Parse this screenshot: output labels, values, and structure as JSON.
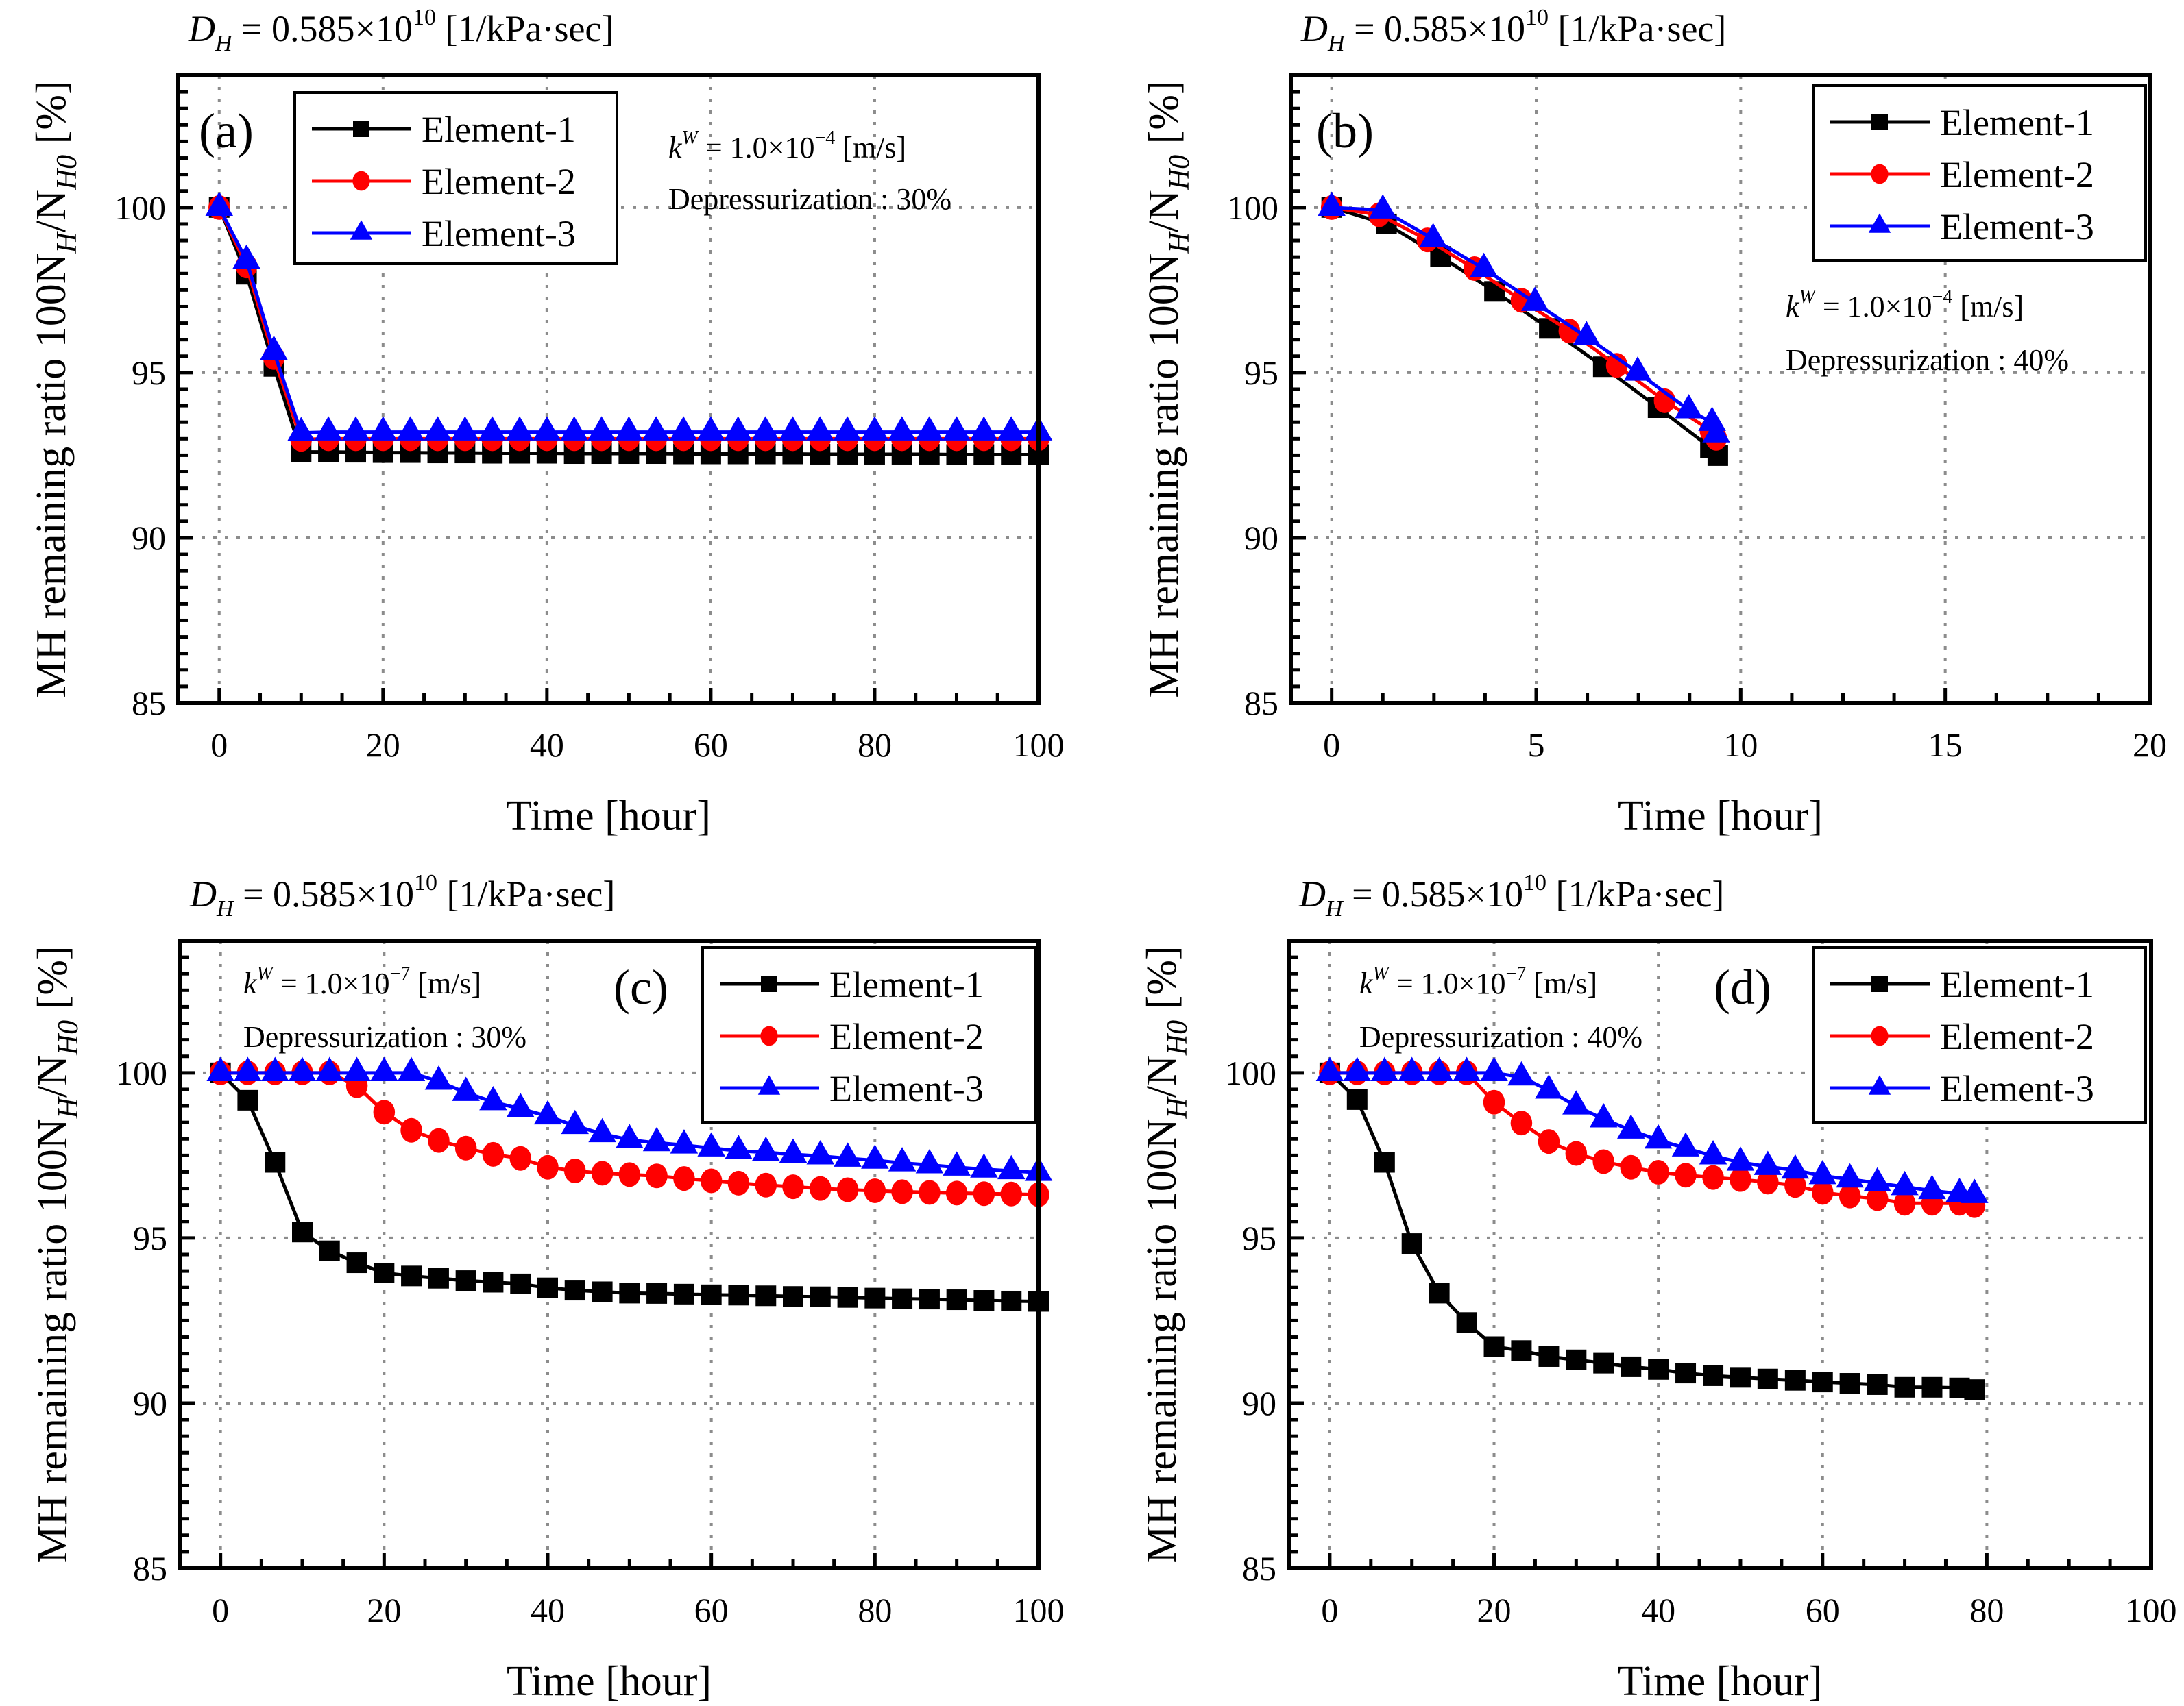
{
  "figure": {
    "y_axis_label": {
      "main": "MH remaining ratio 100N",
      "sub1": "H",
      "mid": "/N",
      "sub2": "H0",
      "unit": " [%]"
    },
    "x_axis_label": "Time [hour]",
    "header": {
      "lhs": "D",
      "lhs_sub": "H",
      "eq": " = 0.585×10",
      "exp": "10",
      "unit": " [1/kPa·sec]"
    },
    "colors": {
      "element_1": "#000000",
      "element_2": "#ff0000",
      "element_3": "#0000ff",
      "grid": "#8c8c8c"
    }
  },
  "chart_data": [
    {
      "type": "line",
      "panel_label": "(a)",
      "title": "D_H = 0.585×10^10 [1/kPa·sec]",
      "xlabel": "Time [hour]",
      "ylabel": "MH remaining ratio 100N_H/N_H0 [%]",
      "xlim": [
        -5,
        100
      ],
      "ylim": [
        85,
        104
      ],
      "xticks": [
        0,
        20,
        40,
        60,
        80,
        100
      ],
      "yticks": [
        85,
        90,
        95,
        100
      ],
      "grid": true,
      "legend_position": "top-left",
      "annotations": {
        "kw_base": "k",
        "kw_sup": "W",
        "kw_eq": " = 1.0×10",
        "kw_exp": "−4",
        "kw_unit": " [m/s]",
        "depress": "Depressurization : 30%"
      },
      "series": [
        {
          "name": "Element-1",
          "marker": "square",
          "x": [
            0,
            3.33,
            6.67,
            10,
            13.33,
            16.67,
            20,
            23.33,
            26.67,
            30,
            33.33,
            36.67,
            40,
            43.33,
            46.67,
            50,
            53.33,
            56.67,
            60,
            63.33,
            66.67,
            70,
            73.33,
            76.67,
            80,
            83.33,
            86.67,
            90,
            93.33,
            96.67,
            100
          ],
          "y": [
            100,
            97.98,
            95.19,
            92.6,
            92.6,
            92.59,
            92.58,
            92.58,
            92.57,
            92.57,
            92.56,
            92.56,
            92.56,
            92.55,
            92.55,
            92.55,
            92.55,
            92.54,
            92.54,
            92.54,
            92.54,
            92.54,
            92.53,
            92.53,
            92.53,
            92.53,
            92.53,
            92.52,
            92.52,
            92.52,
            92.52
          ]
        },
        {
          "name": "Element-2",
          "marker": "circle",
          "x": [
            0,
            3.33,
            6.67,
            10,
            13.33,
            16.67,
            20,
            23.33,
            26.67,
            30,
            33.33,
            36.67,
            40,
            43.33,
            46.67,
            50,
            53.33,
            56.67,
            60,
            63.33,
            66.67,
            70,
            73.33,
            76.67,
            80,
            83.33,
            86.67,
            90,
            93.33,
            96.67,
            100
          ],
          "y": [
            100,
            98.23,
            95.46,
            92.98,
            93.0,
            93.0,
            93.0,
            93.0,
            93.0,
            93.0,
            93.0,
            93.0,
            93.0,
            93.0,
            93.0,
            93.0,
            93.0,
            93.0,
            93.0,
            93.0,
            93.0,
            93.0,
            93.0,
            93.0,
            93.0,
            93.0,
            93.0,
            93.0,
            93.0,
            93.0,
            93.0
          ]
        },
        {
          "name": "Element-3",
          "marker": "triangle",
          "x": [
            0,
            3.33,
            6.67,
            10,
            13.33,
            16.67,
            20,
            23.33,
            26.67,
            30,
            33.33,
            36.67,
            40,
            43.33,
            46.67,
            50,
            53.33,
            56.67,
            60,
            63.33,
            66.67,
            70,
            73.33,
            76.67,
            80,
            83.33,
            86.67,
            90,
            93.33,
            96.67,
            100
          ],
          "y": [
            100,
            98.4,
            95.64,
            93.18,
            93.2,
            93.2,
            93.2,
            93.2,
            93.2,
            93.2,
            93.2,
            93.2,
            93.2,
            93.2,
            93.2,
            93.2,
            93.2,
            93.2,
            93.2,
            93.2,
            93.2,
            93.2,
            93.2,
            93.2,
            93.2,
            93.2,
            93.2,
            93.2,
            93.2,
            93.2,
            93.2
          ]
        }
      ]
    },
    {
      "type": "line",
      "panel_label": "(b)",
      "title": "D_H = 0.585×10^10 [1/kPa·sec]",
      "xlabel": "Time [hour]",
      "ylabel": "MH remaining ratio 100N_H/N_H0 [%]",
      "xlim": [
        -1,
        20
      ],
      "ylim": [
        85,
        104
      ],
      "xticks": [
        0,
        5,
        10,
        15,
        20
      ],
      "yticks": [
        85,
        90,
        95,
        100
      ],
      "grid": true,
      "legend_position": "top-right",
      "annotations": {
        "kw_base": "k",
        "kw_sup": "W",
        "kw_eq": " = 1.0×10",
        "kw_exp": "−4",
        "kw_unit": " [m/s]",
        "depress": "Depressurization : 40%"
      },
      "series": [
        {
          "name": "Element-1",
          "marker": "square",
          "x": [
            0,
            1.34,
            2.66,
            3.98,
            5.32,
            6.64,
            7.98,
            9.26,
            9.44
          ],
          "y": [
            100,
            99.5,
            98.52,
            97.46,
            96.34,
            95.18,
            93.94,
            92.73,
            92.49
          ]
        },
        {
          "name": "Element-2",
          "marker": "circle",
          "x": [
            0,
            1.16,
            2.34,
            3.49,
            4.64,
            5.81,
            6.97,
            8.14,
            9.26,
            9.4
          ],
          "y": [
            100,
            99.78,
            99.02,
            98.15,
            97.19,
            96.26,
            95.22,
            94.15,
            93.25,
            93.01
          ]
        },
        {
          "name": "Element-3",
          "marker": "triangle",
          "x": [
            0,
            1.25,
            2.48,
            3.72,
            4.97,
            6.23,
            7.48,
            8.73,
            9.3,
            9.4
          ],
          "y": [
            100,
            99.92,
            99.05,
            98.15,
            97.12,
            96.08,
            95.01,
            93.87,
            93.49,
            93.14
          ]
        }
      ]
    },
    {
      "type": "line",
      "panel_label": "(c)",
      "title": "D_H = 0.585×10^10 [1/kPa·sec]",
      "xlabel": "Time [hour]",
      "ylabel": "MH remaining ratio 100N_H/N_H0 [%]",
      "xlim": [
        -5,
        100
      ],
      "ylim": [
        85,
        104
      ],
      "xticks": [
        0,
        20,
        40,
        60,
        80,
        100
      ],
      "yticks": [
        85,
        90,
        95,
        100
      ],
      "grid": true,
      "legend_position": "top-right",
      "annotations": {
        "kw_base": "k",
        "kw_sup": "W",
        "kw_eq": " = 1.0×10",
        "kw_exp": "−7",
        "kw_unit": " [m/s]",
        "depress": "Depressurization : 30%"
      },
      "series": [
        {
          "name": "Element-1",
          "marker": "square",
          "x": [
            0,
            3.33,
            6.67,
            10,
            13.33,
            16.67,
            20,
            23.33,
            26.67,
            30,
            33.33,
            36.67,
            40,
            43.33,
            46.67,
            50,
            53.33,
            56.67,
            60,
            63.33,
            66.67,
            70,
            73.33,
            76.67,
            80,
            83.33,
            86.67,
            90,
            93.33,
            96.67,
            100
          ],
          "y": [
            100,
            99.17,
            97.29,
            95.18,
            94.61,
            94.25,
            93.94,
            93.85,
            93.78,
            93.71,
            93.66,
            93.61,
            93.49,
            93.42,
            93.37,
            93.33,
            93.32,
            93.3,
            93.28,
            93.27,
            93.25,
            93.23,
            93.22,
            93.2,
            93.18,
            93.16,
            93.15,
            93.13,
            93.11,
            93.09,
            93.08
          ]
        },
        {
          "name": "Element-2",
          "marker": "circle",
          "x": [
            0,
            3.33,
            6.67,
            10,
            13.33,
            16.67,
            20,
            23.33,
            26.67,
            30,
            33.33,
            36.67,
            40,
            43.33,
            46.67,
            50,
            53.33,
            56.67,
            60,
            63.33,
            66.67,
            70,
            73.33,
            76.67,
            80,
            83.33,
            86.67,
            90,
            93.33,
            96.67,
            100
          ],
          "y": [
            100,
            100,
            100,
            100,
            100,
            99.61,
            98.81,
            98.26,
            97.95,
            97.72,
            97.53,
            97.41,
            97.14,
            97.03,
            96.96,
            96.92,
            96.88,
            96.8,
            96.73,
            96.66,
            96.6,
            96.55,
            96.5,
            96.46,
            96.43,
            96.4,
            96.38,
            96.36,
            96.34,
            96.33,
            96.31
          ]
        },
        {
          "name": "Element-3",
          "marker": "triangle",
          "x": [
            0,
            3.33,
            6.67,
            10,
            13.33,
            16.67,
            20,
            23.33,
            26.67,
            30,
            33.33,
            36.67,
            40,
            43.33,
            46.67,
            50,
            53.33,
            56.67,
            60,
            63.33,
            66.67,
            70,
            73.33,
            76.67,
            80,
            83.33,
            86.67,
            90,
            93.33,
            96.67,
            100
          ],
          "y": [
            100,
            100,
            100,
            100,
            100,
            100,
            100,
            100,
            99.74,
            99.4,
            99.12,
            98.91,
            98.69,
            98.4,
            98.15,
            97.97,
            97.88,
            97.81,
            97.72,
            97.64,
            97.59,
            97.53,
            97.48,
            97.41,
            97.35,
            97.27,
            97.21,
            97.14,
            97.08,
            97.03,
            96.98
          ]
        }
      ]
    },
    {
      "type": "line",
      "panel_label": "(d)",
      "title": "D_H = 0.585×10^10 [1/kPa·sec]",
      "xlabel": "Time [hour]",
      "ylabel": "MH remaining ratio 100N_H/N_H0 [%]",
      "xlim": [
        -5,
        100
      ],
      "ylim": [
        85,
        104
      ],
      "xticks": [
        0,
        20,
        40,
        60,
        80,
        100
      ],
      "yticks": [
        85,
        90,
        95,
        100
      ],
      "grid": true,
      "legend_position": "top-right",
      "annotations": {
        "kw_base": "k",
        "kw_sup": "W",
        "kw_eq": " = 1.0×10",
        "kw_exp": "−7",
        "kw_unit": " [m/s]",
        "depress": "Depressurization : 40%"
      },
      "series": [
        {
          "name": "Element-1",
          "marker": "square",
          "x": [
            0,
            3.33,
            6.67,
            10,
            13.33,
            16.67,
            20,
            23.33,
            26.67,
            30,
            33.33,
            36.67,
            40,
            43.33,
            46.67,
            50,
            53.33,
            56.67,
            60,
            63.33,
            66.67,
            70,
            73.33,
            76.67,
            78.5
          ],
          "y": [
            100,
            99.19,
            97.29,
            94.83,
            93.33,
            92.44,
            91.71,
            91.59,
            91.41,
            91.31,
            91.21,
            91.1,
            91.02,
            90.91,
            90.83,
            90.78,
            90.73,
            90.69,
            90.64,
            90.6,
            90.56,
            90.48,
            90.48,
            90.46,
            90.41
          ]
        },
        {
          "name": "Element-2",
          "marker": "circle",
          "x": [
            0,
            3.33,
            6.67,
            10,
            13.33,
            16.67,
            20,
            23.33,
            26.67,
            30,
            33.33,
            36.67,
            40,
            43.33,
            46.67,
            50,
            53.33,
            56.67,
            60,
            63.33,
            66.67,
            70,
            73.33,
            76.67,
            78.5
          ],
          "y": [
            100,
            100,
            100,
            100,
            100,
            100,
            99.11,
            98.48,
            97.92,
            97.56,
            97.31,
            97.14,
            96.99,
            96.9,
            96.83,
            96.77,
            96.69,
            96.59,
            96.38,
            96.27,
            96.19,
            96.05,
            96.05,
            96.05,
            95.98
          ]
        },
        {
          "name": "Element-3",
          "marker": "triangle",
          "x": [
            0,
            3.33,
            6.67,
            10,
            13.33,
            16.67,
            20,
            23.33,
            26.67,
            30,
            33.33,
            36.67,
            40,
            43.33,
            46.67,
            50,
            53.33,
            56.67,
            60,
            63.33,
            66.67,
            70,
            73.33,
            76.67,
            78.5
          ],
          "y": [
            100,
            100,
            100,
            100,
            100,
            100,
            100,
            99.87,
            99.47,
            98.99,
            98.6,
            98.26,
            97.96,
            97.72,
            97.48,
            97.29,
            97.16,
            97.05,
            96.88,
            96.78,
            96.66,
            96.55,
            96.43,
            96.34,
            96.31
          ]
        }
      ]
    }
  ]
}
